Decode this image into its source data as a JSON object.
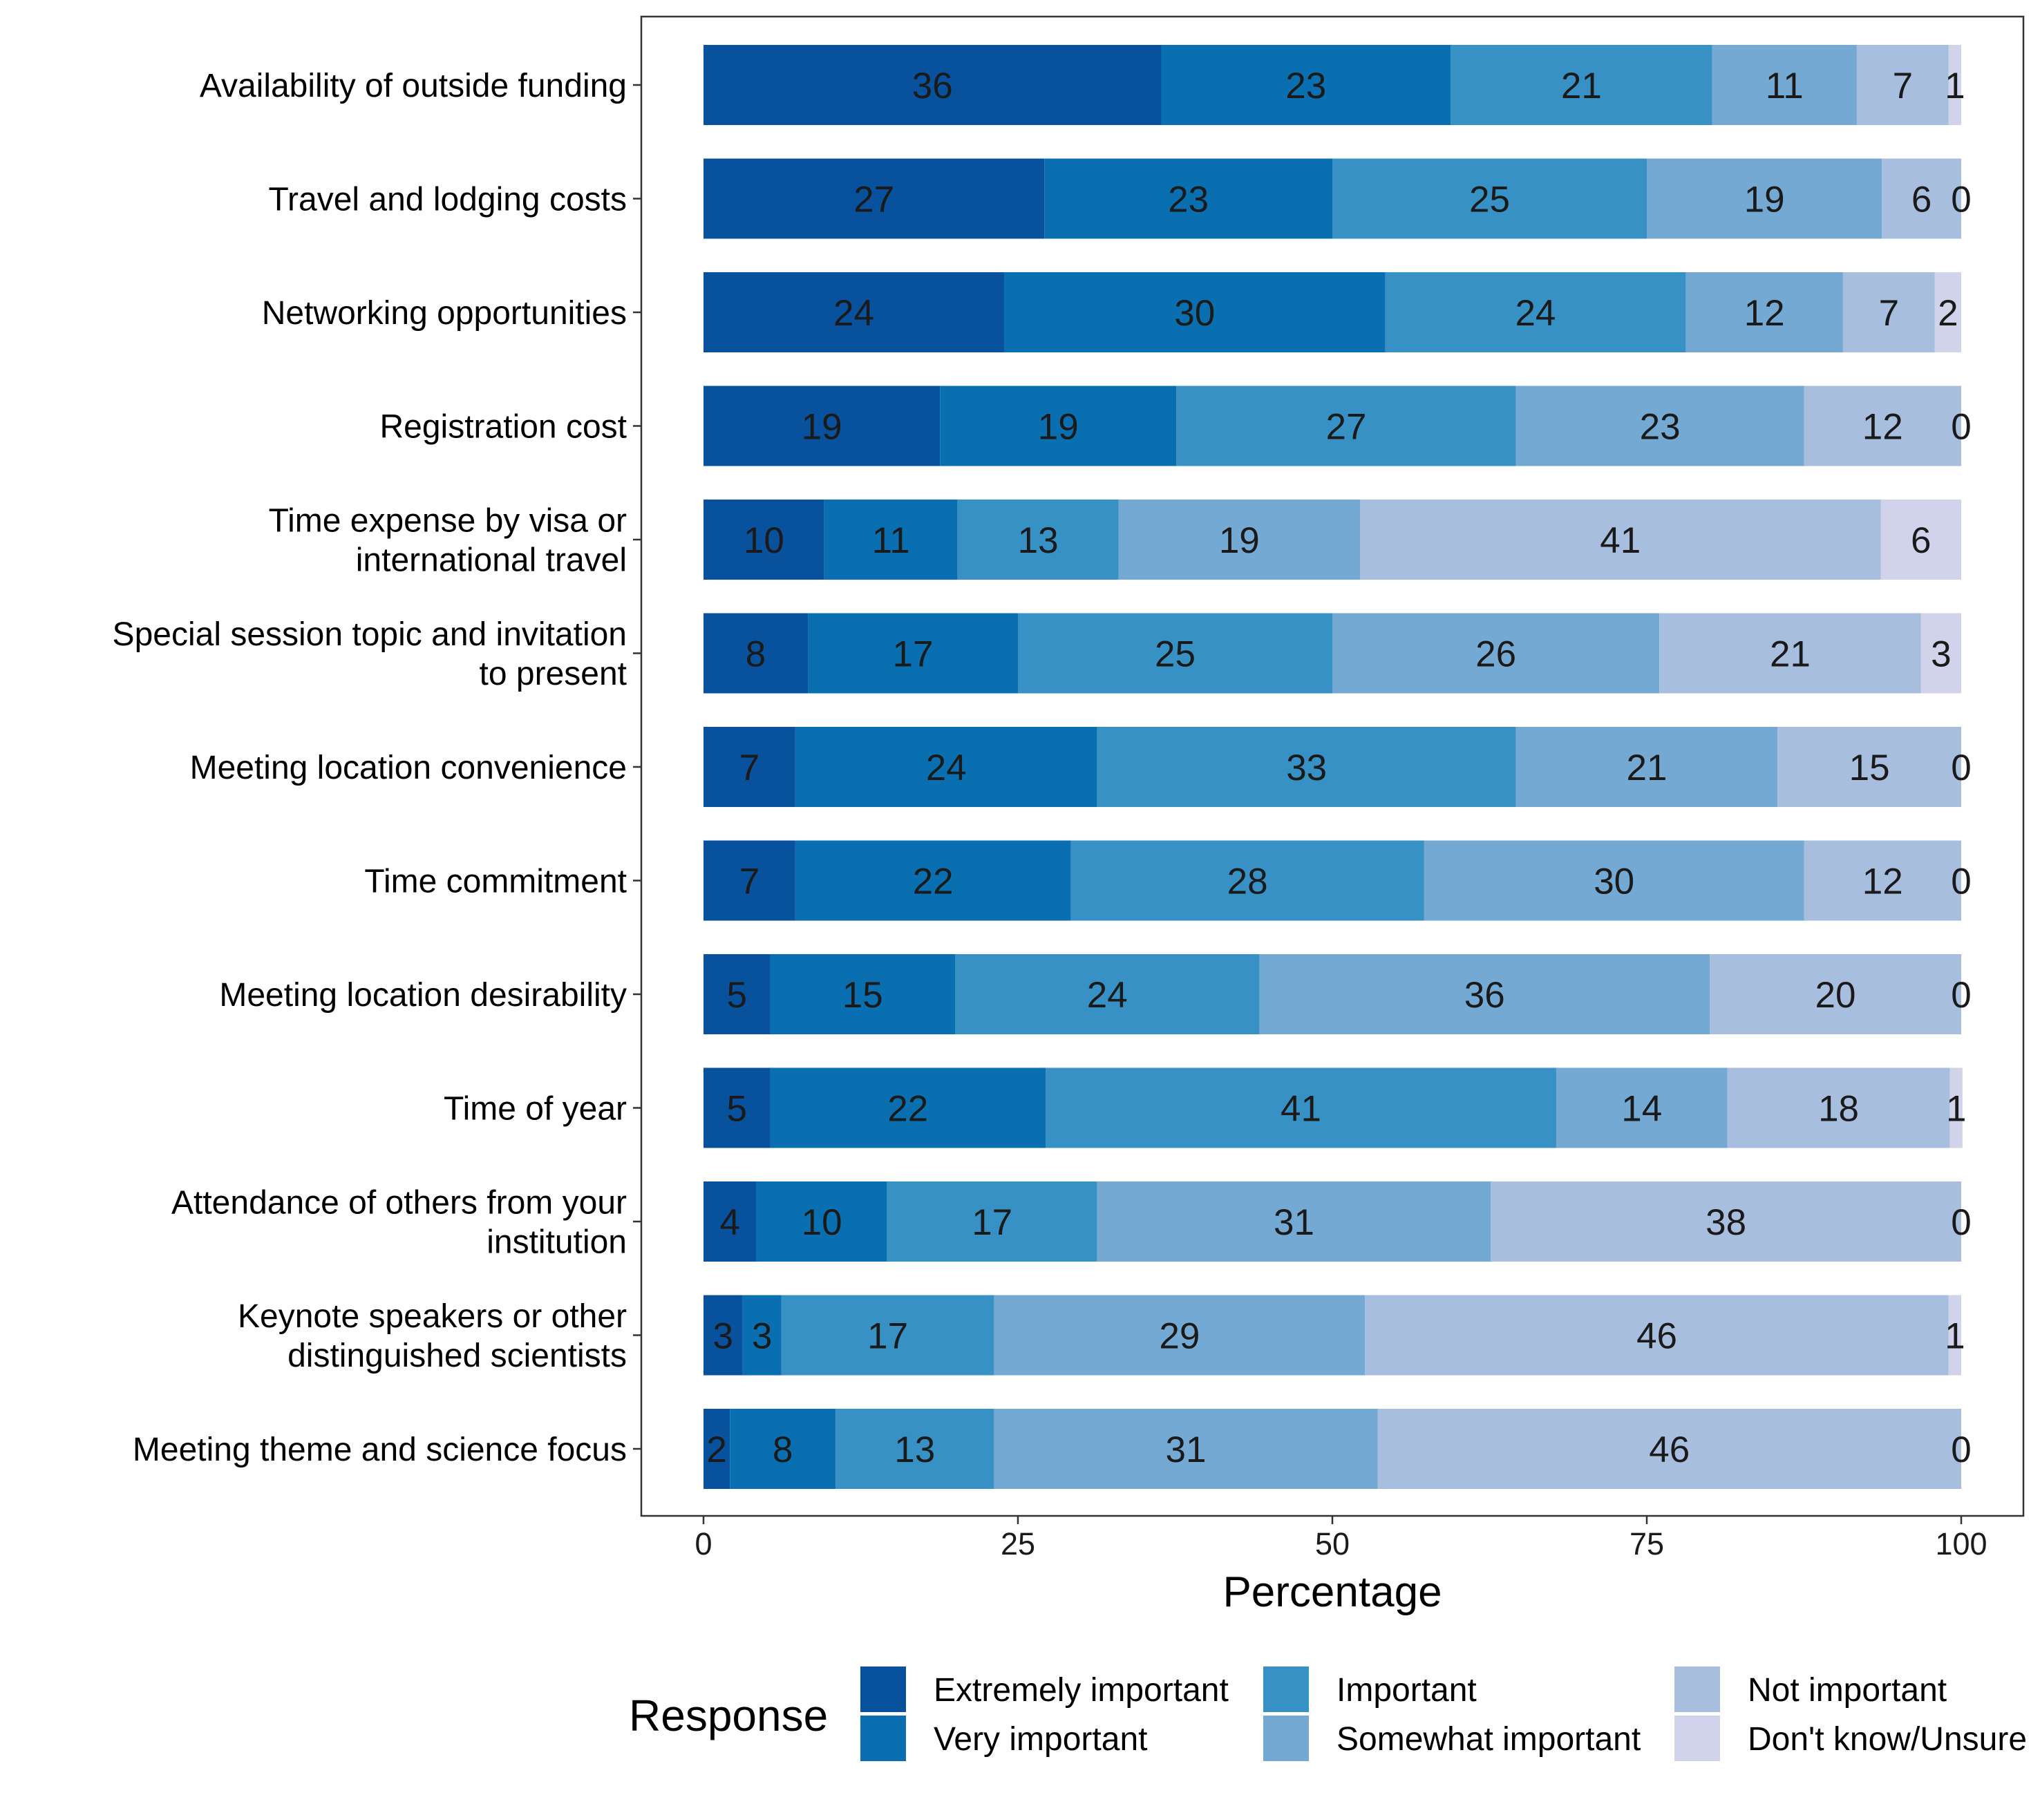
{
  "chart_data": {
    "type": "bar",
    "orientation": "horizontal",
    "stacked": true,
    "categories": [
      [
        "Availability of outside funding"
      ],
      [
        "Travel and lodging costs"
      ],
      [
        "Networking opportunities"
      ],
      [
        "Registration cost"
      ],
      [
        "Time expense by visa or",
        "international travel"
      ],
      [
        "Special session topic and invitation",
        "to present"
      ],
      [
        "Meeting location convenience"
      ],
      [
        "Time commitment"
      ],
      [
        "Meeting location desirability"
      ],
      [
        "Time of year"
      ],
      [
        "Attendance of others from your",
        "institution"
      ],
      [
        "Keynote speakers or other",
        "distinguished scientists"
      ],
      [
        "Meeting theme and science focus"
      ]
    ],
    "series": [
      {
        "name": "Extremely important",
        "color": "#08519c",
        "values": [
          36,
          27,
          24,
          19,
          10,
          8,
          7,
          7,
          5,
          5,
          4,
          3,
          2
        ],
        "extents": [
          36.4,
          27.1,
          23.9,
          18.8,
          9.6,
          8.3,
          7.3,
          7.3,
          5.3,
          5.3,
          4.2,
          3.1,
          2.1
        ]
      },
      {
        "name": "Very important",
        "color": "#0a6fb0",
        "values": [
          23,
          23,
          30,
          19,
          11,
          17,
          24,
          22,
          15,
          22,
          10,
          3,
          8
        ],
        "extents": [
          23.0,
          22.9,
          30.3,
          18.8,
          10.6,
          16.7,
          24.0,
          21.9,
          14.7,
          21.9,
          10.4,
          3.1,
          8.4
        ]
      },
      {
        "name": "Important",
        "color": "#3791c4",
        "values": [
          21,
          25,
          24,
          27,
          13,
          25,
          33,
          28,
          24,
          41,
          17,
          17,
          13
        ],
        "extents": [
          20.8,
          25.0,
          23.9,
          27.0,
          12.8,
          25.0,
          33.3,
          28.1,
          24.2,
          40.6,
          16.7,
          16.9,
          12.6
        ]
      },
      {
        "name": "Somewhat important",
        "color": "#73a9d2",
        "values": [
          11,
          19,
          12,
          23,
          19,
          26,
          21,
          30,
          36,
          14,
          31,
          29,
          31
        ],
        "extents": [
          11.5,
          18.7,
          12.5,
          22.9,
          19.2,
          26.0,
          20.8,
          30.2,
          35.8,
          13.6,
          31.3,
          29.5,
          30.5
        ]
      },
      {
        "name": "Not important",
        "color": "#a8bedf",
        "values": [
          7,
          6,
          7,
          12,
          41,
          21,
          15,
          12,
          20,
          18,
          38,
          46,
          46
        ],
        "extents": [
          7.3,
          6.3,
          7.3,
          12.5,
          41.4,
          20.8,
          14.6,
          12.5,
          20.0,
          17.7,
          37.4,
          46.4,
          46.4
        ]
      },
      {
        "name": "Don't know/Unsure",
        "color": "#d1d3ea",
        "values": [
          1,
          0,
          2,
          0,
          6,
          3,
          0,
          0,
          0,
          1,
          0,
          1,
          0
        ],
        "extents": [
          1.0,
          0,
          2.1,
          0,
          6.4,
          3.2,
          0,
          0,
          0,
          1.0,
          0,
          1.0,
          0
        ]
      }
    ],
    "xlabel": "Percentage",
    "ylabel": "",
    "xlim": [
      0,
      100
    ],
    "xticks": [
      0,
      25,
      50,
      75,
      100
    ],
    "grid": false,
    "legend": {
      "title": "Response",
      "position": "bottom"
    }
  }
}
